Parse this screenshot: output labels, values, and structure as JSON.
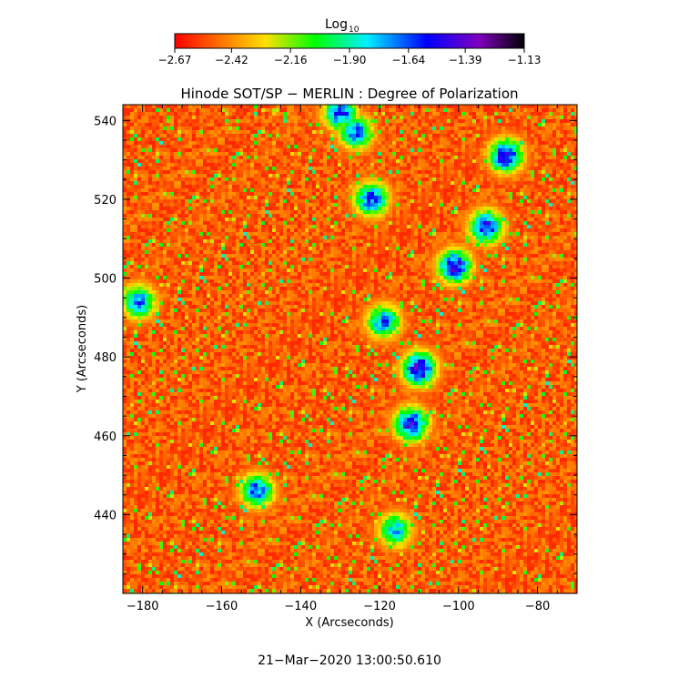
{
  "chart_data": {
    "type": "heatmap",
    "title": "Hinode SOT/SP − MERLIN : Degree of Polarization",
    "xlabel": "X (Arcseconds)",
    "ylabel": "Y (Arcseconds)",
    "xlim": [
      -185,
      -70
    ],
    "ylim": [
      420,
      544
    ],
    "x_ticks": [
      -180,
      -160,
      -140,
      -120,
      -100,
      -80
    ],
    "x_tick_labels": [
      "−180",
      "−160",
      "−140",
      "−120",
      "−100",
      "−80"
    ],
    "y_ticks": [
      440,
      460,
      480,
      500,
      520,
      540
    ],
    "y_tick_labels": [
      "440",
      "460",
      "480",
      "500",
      "520",
      "540"
    ],
    "colorbar": {
      "title": "Log",
      "title_subscript": "10",
      "colormap": "rainbow (red to purple/black)",
      "range": [
        -2.67,
        -1.13
      ],
      "ticks": [
        -2.67,
        -2.42,
        -2.16,
        -1.9,
        -1.64,
        -1.39,
        -1.13
      ],
      "tick_labels": [
        "−2.67",
        "−2.42",
        "−2.16",
        "−1.90",
        "−1.64",
        "−1.39",
        "−1.13"
      ]
    },
    "hotspots": [
      {
        "x": -110,
        "y": 477,
        "value": -1.3
      },
      {
        "x": -112,
        "y": 463,
        "value": -1.4
      },
      {
        "x": -101,
        "y": 503,
        "value": -1.35
      },
      {
        "x": -93,
        "y": 513,
        "value": -1.45
      },
      {
        "x": -88,
        "y": 531,
        "value": -1.4
      },
      {
        "x": -122,
        "y": 520,
        "value": -1.5
      },
      {
        "x": -126,
        "y": 537,
        "value": -1.55
      },
      {
        "x": -181,
        "y": 494,
        "value": -1.6
      },
      {
        "x": -151,
        "y": 446,
        "value": -1.55
      },
      {
        "x": -119,
        "y": 489,
        "value": -1.6
      },
      {
        "x": -116,
        "y": 436,
        "value": -1.7
      },
      {
        "x": -130,
        "y": 542,
        "value": -1.5
      }
    ],
    "grid": false,
    "legend": "colorbar top-center"
  },
  "timestamp": "21−Mar−2020 13:00:50.610"
}
